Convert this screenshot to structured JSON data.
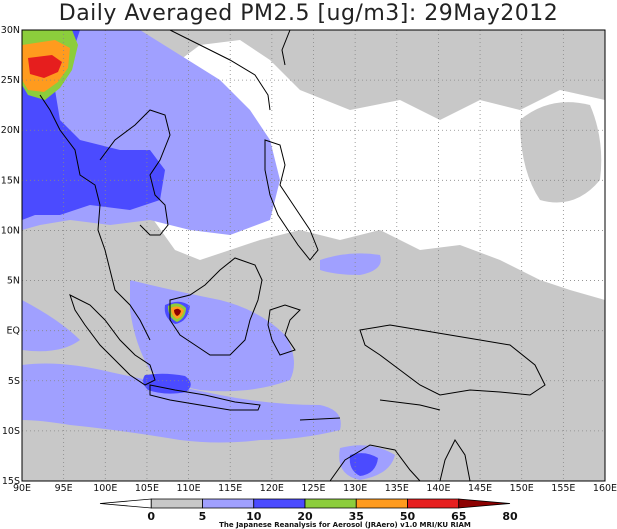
{
  "title": "Daily Averaged PM2.5 [ug/m3]: 29May2012",
  "map": {
    "lon_range": [
      90,
      160
    ],
    "lat_range": [
      -15,
      30
    ],
    "lon_ticks": [
      {
        "value": 90,
        "label": "90E"
      },
      {
        "value": 95,
        "label": "95E"
      },
      {
        "value": 100,
        "label": "100E"
      },
      {
        "value": 105,
        "label": "105E"
      },
      {
        "value": 110,
        "label": "110E"
      },
      {
        "value": 115,
        "label": "115E"
      },
      {
        "value": 120,
        "label": "120E"
      },
      {
        "value": 125,
        "label": "125E"
      },
      {
        "value": 130,
        "label": "130E"
      },
      {
        "value": 135,
        "label": "135E"
      },
      {
        "value": 140,
        "label": "140E"
      },
      {
        "value": 145,
        "label": "145E"
      },
      {
        "value": 150,
        "label": "150E"
      },
      {
        "value": 155,
        "label": "155E"
      },
      {
        "value": 160,
        "label": "160E"
      }
    ],
    "lat_ticks": [
      {
        "value": 30,
        "label": "30N"
      },
      {
        "value": 25,
        "label": "25N"
      },
      {
        "value": 20,
        "label": "20N"
      },
      {
        "value": 15,
        "label": "15N"
      },
      {
        "value": 10,
        "label": "10N"
      },
      {
        "value": 5,
        "label": "5N"
      },
      {
        "value": 0,
        "label": "EQ"
      },
      {
        "value": -5,
        "label": "5S"
      },
      {
        "value": -10,
        "label": "10S"
      },
      {
        "value": -15,
        "label": "15S"
      }
    ],
    "grid": "dotted"
  },
  "colorbar": {
    "levels": [
      "0",
      "5",
      "10",
      "20",
      "35",
      "50",
      "65",
      "80"
    ],
    "colors": [
      "#ffffff",
      "#c8c8c8",
      "#a0a0ff",
      "#4b4bff",
      "#8ccd3c",
      "#ff9b1e",
      "#e61e1e",
      "#8c0000"
    ]
  },
  "credit": "The Japanese Reanalysis for Aerosol (JRAero) v1.0 MRI/KU RIAM"
}
